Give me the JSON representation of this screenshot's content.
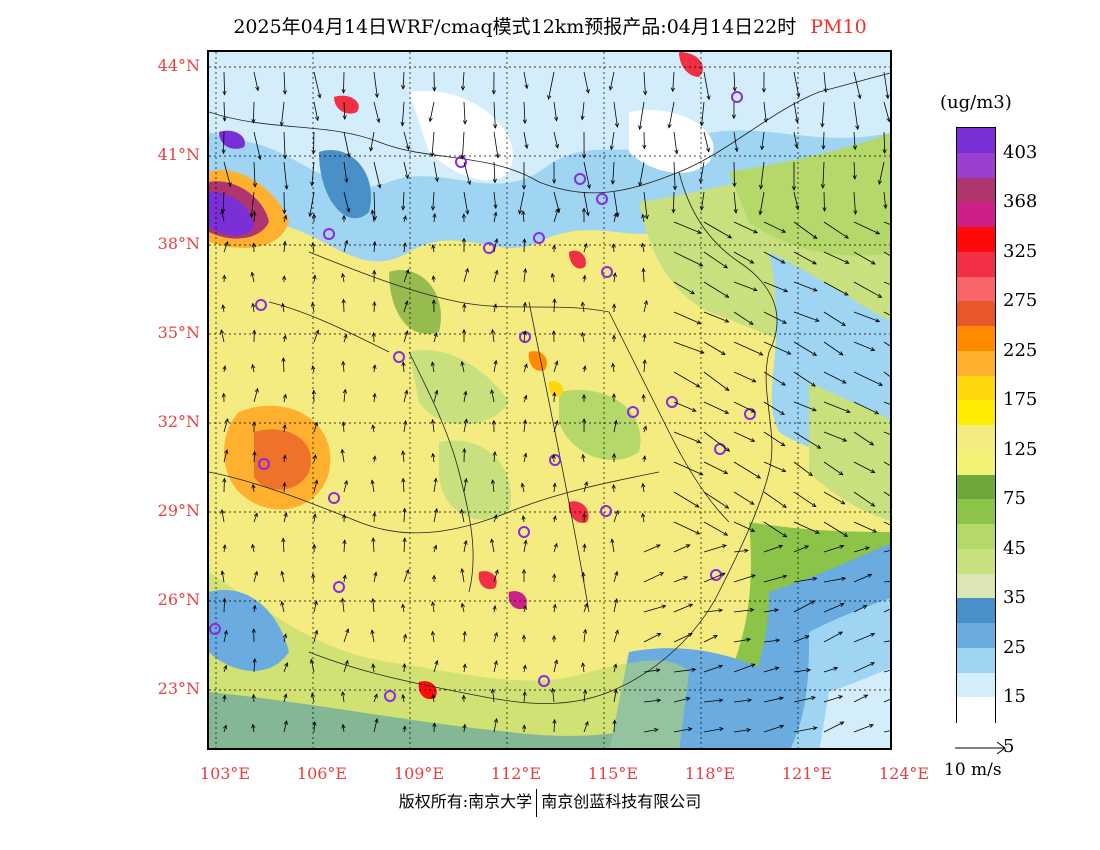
{
  "title": {
    "main": "2025年04月14日WRF/cmaq模式12km预报产品:04月14日22时",
    "pollutant": "PM10"
  },
  "axes": {
    "lat_labels": [
      "44°N",
      "41°N",
      "38°N",
      "35°N",
      "32°N",
      "29°N",
      "26°N",
      "23°N"
    ],
    "lon_labels": [
      "103°E",
      "106°E",
      "109°E",
      "112°E",
      "115°E",
      "118°E",
      "121°E",
      "124°E"
    ]
  },
  "legend": {
    "unit": "(ug/m3)",
    "ticks": [
      "403",
      "368",
      "325",
      "275",
      "225",
      "175",
      "125",
      "75",
      "45",
      "35",
      "25",
      "15",
      "5"
    ],
    "colors": [
      "#7b2fd6",
      "#9a3fd0",
      "#b0356e",
      "#cc1f87",
      "#ff0a0a",
      "#f23045",
      "#f9666a",
      "#e8582a",
      "#ff8a00",
      "#ffb02e",
      "#ffd60a",
      "#ffec00",
      "#f4ec80",
      "#f2f274",
      "#6ea83c",
      "#8cc44a",
      "#b4d86a",
      "#c9e07f",
      "#dce6b3",
      "#4a90c8",
      "#6aace0",
      "#9fd4f2",
      "#d3edfb",
      "#ffffff"
    ]
  },
  "wind_scale": {
    "label": "10 m/s"
  },
  "footer": {
    "left": "版权所有:南京大学",
    "right": "南京创蓝科技有限公司"
  }
}
